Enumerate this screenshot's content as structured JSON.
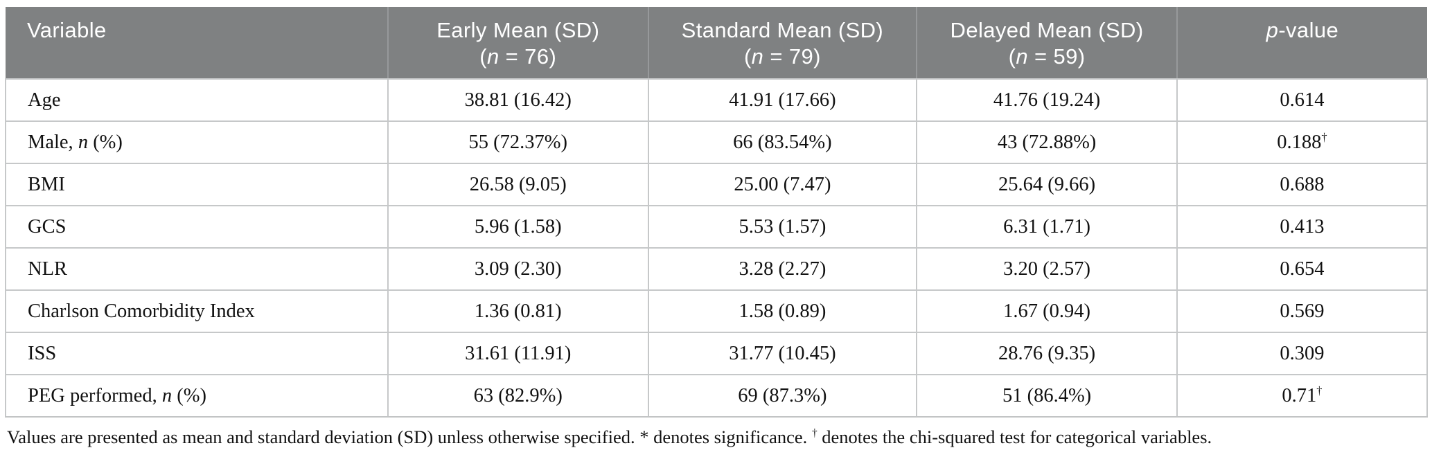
{
  "header": {
    "variable": "Variable",
    "early": {
      "line1": "Early Mean (SD)",
      "paren_open": "(",
      "n_italic": "n",
      "paren_rest": " = 76)"
    },
    "standard": {
      "line1": "Standard Mean (SD)",
      "paren_open": "(",
      "n_italic": "n",
      "paren_rest": " = 79)"
    },
    "delayed": {
      "line1": "Delayed Mean (SD)",
      "paren_open": "(",
      "n_italic": "n",
      "paren_rest": " = 59)"
    },
    "p_value": {
      "p_italic": "p",
      "rest": "-value"
    }
  },
  "rows": [
    {
      "var_pre": "Age",
      "var_italic": "",
      "var_post": "",
      "early": "38.81 (16.42)",
      "standard": "41.91 (17.66)",
      "delayed": "41.76 (19.24)",
      "p": "0.614",
      "p_sup": ""
    },
    {
      "var_pre": "Male, ",
      "var_italic": "n",
      "var_post": " (%)",
      "early": "55 (72.37%)",
      "standard": "66 (83.54%)",
      "delayed": "43 (72.88%)",
      "p": "0.188",
      "p_sup": "†"
    },
    {
      "var_pre": "BMI",
      "var_italic": "",
      "var_post": "",
      "early": "26.58 (9.05)",
      "standard": "25.00 (7.47)",
      "delayed": "25.64 (9.66)",
      "p": "0.688",
      "p_sup": ""
    },
    {
      "var_pre": "GCS",
      "var_italic": "",
      "var_post": "",
      "early": "5.96 (1.58)",
      "standard": "5.53 (1.57)",
      "delayed": "6.31 (1.71)",
      "p": "0.413",
      "p_sup": ""
    },
    {
      "var_pre": "NLR",
      "var_italic": "",
      "var_post": "",
      "early": "3.09 (2.30)",
      "standard": "3.28 (2.27)",
      "delayed": "3.20 (2.57)",
      "p": "0.654",
      "p_sup": ""
    },
    {
      "var_pre": "Charlson Comorbidity Index",
      "var_italic": "",
      "var_post": "",
      "early": "1.36 (0.81)",
      "standard": "1.58 (0.89)",
      "delayed": "1.67 (0.94)",
      "p": "0.569",
      "p_sup": ""
    },
    {
      "var_pre": "ISS",
      "var_italic": "",
      "var_post": "",
      "early": "31.61 (11.91)",
      "standard": "31.77 (10.45)",
      "delayed": "28.76 (9.35)",
      "p": "0.309",
      "p_sup": ""
    },
    {
      "var_pre": "PEG performed, ",
      "var_italic": "n",
      "var_post": " (%)",
      "early": "63 (82.9%)",
      "standard": "69 (87.3%)",
      "delayed": "51 (86.4%)",
      "p": "0.71",
      "p_sup": "†"
    }
  ],
  "footnote": {
    "part1": "Values are presented as mean and standard deviation (SD) unless otherwise specified. * denotes significance. ",
    "dagger": "†",
    "part2": " denotes the chi-squared test for categorical variables."
  },
  "colors": {
    "header_bg": "#7f8182",
    "header_text": "#ffffff",
    "body_text": "#111111",
    "grid_line": "#c6c8c9"
  }
}
